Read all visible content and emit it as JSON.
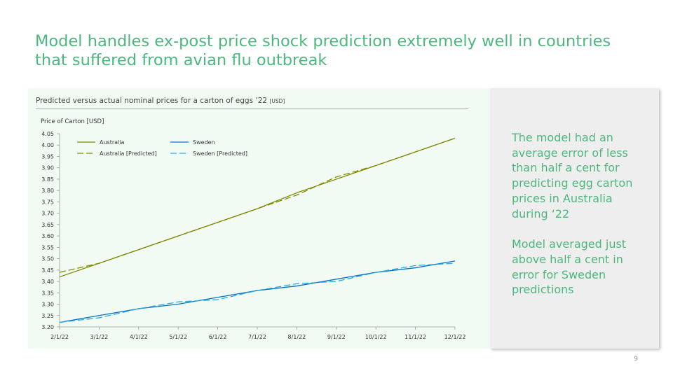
{
  "slide": {
    "title": "Model handles ex-post price shock prediction extremely well in countries that suffered from avian flu outbreak",
    "page_number": "9"
  },
  "side_panel": {
    "paragraphs": [
      "The model had an average error of less than half a cent for predicting egg carton prices in Australia during ‘22",
      "Model averaged just above half a cent in error for Sweden predictions"
    ]
  },
  "chart_data": {
    "type": "line",
    "title": "Predicted versus actual nominal prices for a carton of eggs ’22",
    "title_unit": "[USD]",
    "ylabel": "Price of Carton [USD]",
    "xlabel": "",
    "x": [
      "2/1/22",
      "3/1/22",
      "4/1/22",
      "5/1/22",
      "6/1/22",
      "7/1/22",
      "8/1/22",
      "9/1/22",
      "10/1/22",
      "11/1/22",
      "12/1/22"
    ],
    "ylim": [
      3.2,
      4.05
    ],
    "yticks": [
      "3.20",
      "3.25",
      "3.30",
      "3.35",
      "3.40",
      "3.45",
      "3.50",
      "3.55",
      "3.60",
      "3.65",
      "3.70",
      "3.75",
      "3.80",
      "3.85",
      "3.90",
      "3.95",
      "4.00",
      "4.05"
    ],
    "grid": false,
    "legend_position": "top-left",
    "series": [
      {
        "name": "Australia",
        "color": "#7f8a00",
        "dash": "solid",
        "values": [
          3.42,
          3.48,
          3.54,
          3.6,
          3.66,
          3.72,
          3.79,
          3.85,
          3.91,
          3.97,
          4.03
        ]
      },
      {
        "name": "Australia [Predicted]",
        "color": "#7f8a00",
        "dash": "dashed",
        "values": [
          3.44,
          3.48,
          3.54,
          3.6,
          3.66,
          3.72,
          3.78,
          3.86,
          3.91,
          3.97,
          4.03
        ]
      },
      {
        "name": "Sweden",
        "color": "#0b6fc6",
        "dash": "solid",
        "values": [
          3.22,
          3.25,
          3.28,
          3.3,
          3.33,
          3.36,
          3.38,
          3.41,
          3.44,
          3.46,
          3.49
        ]
      },
      {
        "name": "Sweden [Predicted]",
        "color": "#29a9e0",
        "dash": "dashed",
        "values": [
          3.22,
          3.24,
          3.28,
          3.31,
          3.32,
          3.36,
          3.39,
          3.4,
          3.44,
          3.47,
          3.48
        ]
      }
    ]
  }
}
